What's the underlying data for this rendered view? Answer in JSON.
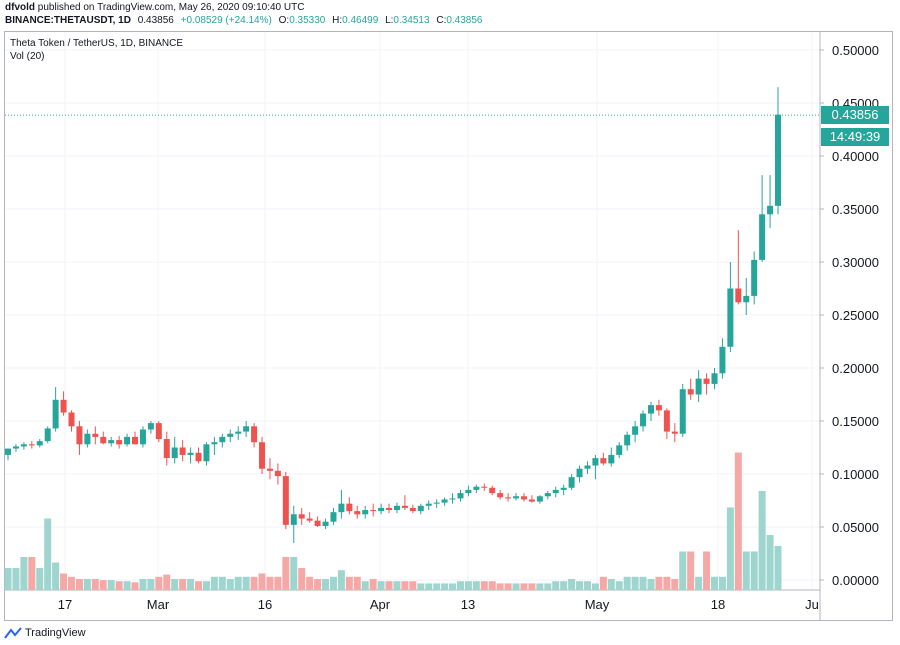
{
  "header": {
    "author": "dfvold",
    "published": "published on TradingView.com, May 26, 2020 09:10:40 UTC",
    "symbol": "BINANCE:THETAUSDT, 1D",
    "last_value": "0.43856",
    "change": "+0.08529 (+24.14%)",
    "open_label": "O:",
    "open": "0.35330",
    "high_label": "H:",
    "high": "0.46499",
    "low_label": "L:",
    "low": "0.34513",
    "close_label": "C:",
    "close": "0.43856"
  },
  "pane": {
    "title": "Theta Token / TetherUS, 1D, BINANCE",
    "volume_label": "Vol (20)"
  },
  "price_tag": {
    "price": "0.43856",
    "countdown": "14:49:39"
  },
  "footer": {
    "brand": "TradingView"
  },
  "colors": {
    "up": "#26a69a",
    "down": "#ef5350",
    "vol_up": "#9fd5cf",
    "vol_down": "#f4a9a7",
    "grid": "#f0f3fa"
  },
  "chart_data": {
    "type": "candlestick",
    "y_ticks": [
      "0.50000",
      "0.45000",
      "0.40000",
      "0.35000",
      "0.30000",
      "0.25000",
      "0.20000",
      "0.15000",
      "0.10000",
      "0.05000",
      "0.00000"
    ],
    "x_ticks": [
      "17",
      "Mar",
      "16",
      "Apr",
      "13",
      "May",
      "18",
      "Ju"
    ],
    "ylim": [
      0.0,
      0.5
    ],
    "candles": [
      [
        0.118,
        0.121,
        0.113,
        0.124,
        0.02
      ],
      [
        0.124,
        0.128,
        0.121,
        0.126,
        0.02
      ],
      [
        0.126,
        0.13,
        0.123,
        0.128,
        0.03
      ],
      [
        0.128,
        0.131,
        0.124,
        0.127,
        0.03
      ],
      [
        0.127,
        0.133,
        0.125,
        0.131,
        0.02
      ],
      [
        0.131,
        0.145,
        0.129,
        0.143,
        0.065
      ],
      [
        0.143,
        0.182,
        0.14,
        0.17,
        0.025
      ],
      [
        0.17,
        0.178,
        0.155,
        0.158,
        0.015
      ],
      [
        0.158,
        0.16,
        0.14,
        0.145,
        0.012
      ],
      [
        0.145,
        0.15,
        0.118,
        0.128,
        0.01
      ],
      [
        0.128,
        0.142,
        0.125,
        0.138,
        0.01
      ],
      [
        0.138,
        0.145,
        0.128,
        0.135,
        0.01
      ],
      [
        0.135,
        0.14,
        0.128,
        0.129,
        0.009
      ],
      [
        0.129,
        0.135,
        0.126,
        0.132,
        0.009
      ],
      [
        0.132,
        0.136,
        0.124,
        0.128,
        0.008
      ],
      [
        0.128,
        0.138,
        0.126,
        0.135,
        0.008
      ],
      [
        0.135,
        0.14,
        0.128,
        0.128,
        0.007
      ],
      [
        0.128,
        0.145,
        0.125,
        0.142,
        0.01
      ],
      [
        0.142,
        0.15,
        0.138,
        0.148,
        0.01
      ],
      [
        0.148,
        0.15,
        0.13,
        0.133,
        0.012
      ],
      [
        0.133,
        0.14,
        0.108,
        0.115,
        0.014
      ],
      [
        0.115,
        0.135,
        0.11,
        0.125,
        0.01
      ],
      [
        0.125,
        0.132,
        0.112,
        0.118,
        0.01
      ],
      [
        0.118,
        0.125,
        0.11,
        0.12,
        0.01
      ],
      [
        0.12,
        0.125,
        0.11,
        0.112,
        0.008
      ],
      [
        0.112,
        0.13,
        0.108,
        0.128,
        0.008
      ],
      [
        0.128,
        0.135,
        0.118,
        0.13,
        0.012
      ],
      [
        0.13,
        0.138,
        0.125,
        0.135,
        0.012
      ],
      [
        0.135,
        0.142,
        0.13,
        0.138,
        0.01
      ],
      [
        0.138,
        0.145,
        0.132,
        0.14,
        0.012
      ],
      [
        0.14,
        0.15,
        0.135,
        0.145,
        0.012
      ],
      [
        0.145,
        0.148,
        0.125,
        0.13,
        0.012
      ],
      [
        0.13,
        0.135,
        0.1,
        0.105,
        0.015
      ],
      [
        0.105,
        0.115,
        0.095,
        0.103,
        0.012
      ],
      [
        0.103,
        0.11,
        0.09,
        0.098,
        0.012
      ],
      [
        0.098,
        0.102,
        0.048,
        0.052,
        0.03
      ],
      [
        0.052,
        0.07,
        0.035,
        0.062,
        0.03
      ],
      [
        0.062,
        0.068,
        0.052,
        0.058,
        0.02
      ],
      [
        0.058,
        0.064,
        0.054,
        0.056,
        0.012
      ],
      [
        0.056,
        0.06,
        0.05,
        0.051,
        0.01
      ],
      [
        0.051,
        0.058,
        0.048,
        0.055,
        0.01
      ],
      [
        0.055,
        0.068,
        0.052,
        0.064,
        0.012
      ],
      [
        0.064,
        0.085,
        0.058,
        0.072,
        0.018
      ],
      [
        0.072,
        0.078,
        0.062,
        0.065,
        0.012
      ],
      [
        0.065,
        0.07,
        0.058,
        0.062,
        0.012
      ],
      [
        0.062,
        0.07,
        0.058,
        0.066,
        0.008
      ],
      [
        0.066,
        0.072,
        0.06,
        0.065,
        0.01
      ],
      [
        0.065,
        0.072,
        0.062,
        0.068,
        0.008
      ],
      [
        0.068,
        0.072,
        0.063,
        0.066,
        0.008
      ],
      [
        0.066,
        0.073,
        0.063,
        0.07,
        0.008
      ],
      [
        0.07,
        0.08,
        0.066,
        0.068,
        0.008
      ],
      [
        0.068,
        0.071,
        0.063,
        0.065,
        0.008
      ],
      [
        0.065,
        0.072,
        0.062,
        0.07,
        0.006
      ],
      [
        0.07,
        0.075,
        0.066,
        0.072,
        0.006
      ],
      [
        0.072,
        0.076,
        0.068,
        0.073,
        0.006
      ],
      [
        0.073,
        0.078,
        0.07,
        0.076,
        0.006
      ],
      [
        0.076,
        0.082,
        0.072,
        0.077,
        0.006
      ],
      [
        0.077,
        0.085,
        0.074,
        0.082,
        0.008
      ],
      [
        0.082,
        0.089,
        0.079,
        0.085,
        0.008
      ],
      [
        0.085,
        0.09,
        0.082,
        0.088,
        0.008
      ],
      [
        0.088,
        0.091,
        0.084,
        0.087,
        0.008
      ],
      [
        0.087,
        0.089,
        0.08,
        0.082,
        0.008
      ],
      [
        0.082,
        0.085,
        0.076,
        0.078,
        0.006
      ],
      [
        0.078,
        0.082,
        0.074,
        0.077,
        0.006
      ],
      [
        0.077,
        0.082,
        0.075,
        0.079,
        0.006
      ],
      [
        0.079,
        0.082,
        0.074,
        0.076,
        0.006
      ],
      [
        0.076,
        0.08,
        0.073,
        0.074,
        0.006
      ],
      [
        0.074,
        0.08,
        0.072,
        0.079,
        0.006
      ],
      [
        0.079,
        0.084,
        0.076,
        0.082,
        0.006
      ],
      [
        0.082,
        0.088,
        0.078,
        0.085,
        0.008
      ],
      [
        0.085,
        0.09,
        0.08,
        0.087,
        0.008
      ],
      [
        0.087,
        0.1,
        0.085,
        0.097,
        0.01
      ],
      [
        0.097,
        0.108,
        0.092,
        0.105,
        0.008
      ],
      [
        0.105,
        0.112,
        0.1,
        0.108,
        0.008
      ],
      [
        0.108,
        0.118,
        0.095,
        0.115,
        0.006
      ],
      [
        0.115,
        0.12,
        0.108,
        0.11,
        0.012
      ],
      [
        0.11,
        0.125,
        0.107,
        0.118,
        0.01
      ],
      [
        0.118,
        0.13,
        0.115,
        0.127,
        0.008
      ],
      [
        0.127,
        0.14,
        0.122,
        0.137,
        0.012
      ],
      [
        0.137,
        0.15,
        0.13,
        0.145,
        0.012
      ],
      [
        0.145,
        0.16,
        0.14,
        0.157,
        0.012
      ],
      [
        0.157,
        0.168,
        0.15,
        0.165,
        0.01
      ],
      [
        0.165,
        0.17,
        0.155,
        0.16,
        0.012
      ],
      [
        0.16,
        0.162,
        0.133,
        0.14,
        0.012
      ],
      [
        0.14,
        0.148,
        0.13,
        0.138,
        0.01
      ],
      [
        0.138,
        0.185,
        0.135,
        0.18,
        0.035
      ],
      [
        0.18,
        0.19,
        0.17,
        0.175,
        0.035
      ],
      [
        0.175,
        0.198,
        0.168,
        0.19,
        0.012
      ],
      [
        0.19,
        0.195,
        0.175,
        0.185,
        0.035
      ],
      [
        0.185,
        0.2,
        0.18,
        0.195,
        0.012
      ],
      [
        0.195,
        0.228,
        0.19,
        0.22,
        0.012
      ],
      [
        0.22,
        0.3,
        0.215,
        0.275,
        0.075
      ],
      [
        0.275,
        0.33,
        0.26,
        0.262,
        0.125
      ],
      [
        0.262,
        0.285,
        0.25,
        0.268,
        0.035
      ],
      [
        0.268,
        0.31,
        0.26,
        0.302,
        0.035
      ],
      [
        0.302,
        0.382,
        0.3,
        0.345,
        0.09
      ],
      [
        0.345,
        0.382,
        0.332,
        0.353,
        0.05
      ],
      [
        0.353,
        0.465,
        0.345,
        0.439,
        0.04
      ]
    ]
  }
}
